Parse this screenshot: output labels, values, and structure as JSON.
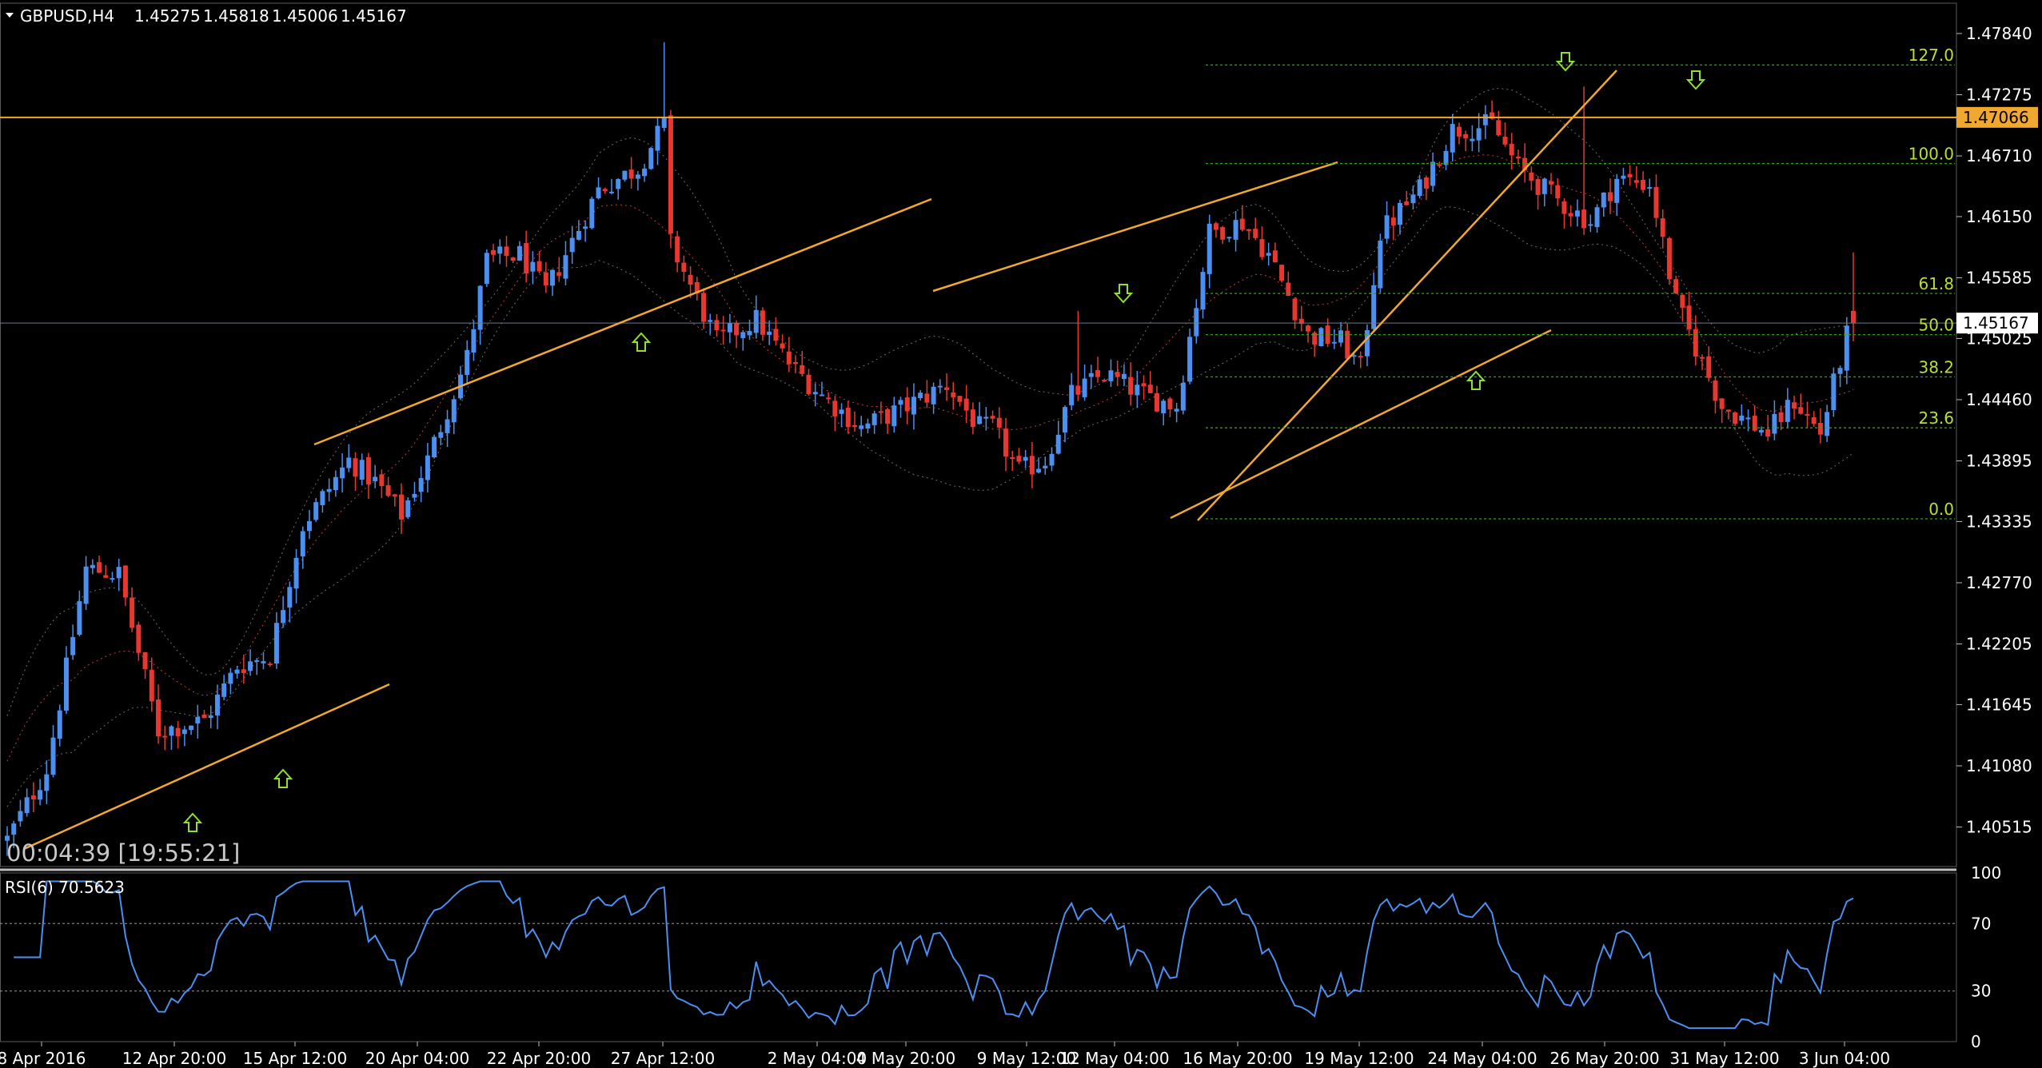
{
  "header": {
    "symbol_tf": "GBPUSD,H4",
    "open": "1.45275",
    "high": "1.45818",
    "low": "1.45006",
    "close": "1.45167"
  },
  "timer": "00:04:39 [19:55:21]",
  "rsi": {
    "label": "RSI(6) 70.5623"
  },
  "colors": {
    "bull": "#4b8ff0",
    "bear": "#e8372f",
    "trend": "#f0a830",
    "fib": "#3c9a1e",
    "fib_text": "#b8e030",
    "arrow": "#8fe030",
    "rsi_line": "#4b8ff0"
  },
  "chart_data": {
    "type": "candlestick",
    "ylim": [
      1.4015,
      1.4812
    ],
    "y_ticks": [
      "1.47840",
      "1.47275",
      "1.46710",
      "1.46150",
      "1.45585",
      "1.45025",
      "1.44460",
      "1.43895",
      "1.43335",
      "1.42770",
      "1.42205",
      "1.41645",
      "1.41080",
      "1.40515"
    ],
    "x_ticks": [
      "8 Apr 2016",
      "12 Apr 20:00",
      "15 Apr 12:00",
      "20 Apr 04:00",
      "22 Apr 20:00",
      "27 Apr 12:00",
      "2 May 04:00",
      "4 May 20:00",
      "9 May 12:00",
      "12 May 04:00",
      "16 May 20:00",
      "19 May 12:00",
      "24 May 04:00",
      "26 May 20:00",
      "31 May 12:00",
      "3 Jun 04:00"
    ],
    "resistance_line": {
      "price": 1.47066,
      "label": "1.47066"
    },
    "current_price": {
      "price": 1.45167,
      "label": "1.45167"
    },
    "fib_levels": [
      {
        "label": "127.0",
        "price": 1.4755
      },
      {
        "label": "100.0",
        "price": 1.4664
      },
      {
        "label": "61.8",
        "price": 1.4544
      },
      {
        "label": "50.0",
        "price": 1.4506
      },
      {
        "label": "38.2",
        "price": 1.4467
      },
      {
        "label": "23.6",
        "price": 1.442
      },
      {
        "label": "0.0",
        "price": 1.4336
      }
    ],
    "rsi_ticks": [
      "100",
      "70",
      "30",
      "0"
    ],
    "rsi_levels": [
      70,
      30
    ]
  }
}
